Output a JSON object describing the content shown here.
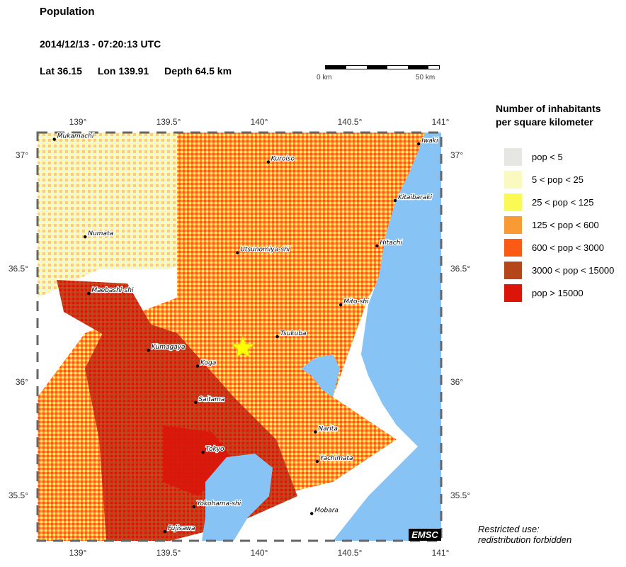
{
  "header": {
    "title": "Population",
    "datetime": "2014/12/13 - 07:20:13 UTC",
    "lat": "Lat 36.15",
    "lon": "Lon 139.91",
    "depth": "Depth  64.5 km"
  },
  "scale": {
    "left_label": "0 km",
    "right_label": "50 km"
  },
  "map": {
    "lon_ticks": [
      {
        "lon": 139,
        "label": "139°"
      },
      {
        "lon": 139.5,
        "label": "139.5°"
      },
      {
        "lon": 140,
        "label": "140°"
      },
      {
        "lon": 140.5,
        "label": "140.5°"
      },
      {
        "lon": 141,
        "label": "141°"
      }
    ],
    "lat_ticks": [
      {
        "lat": 37,
        "label": "37°"
      },
      {
        "lat": 36.5,
        "label": "36.5°"
      },
      {
        "lat": 36,
        "label": "36°"
      },
      {
        "lat": 35.5,
        "label": "35.5°"
      }
    ],
    "epicenter": {
      "lat": 36.15,
      "lon": 139.91
    },
    "cities": [
      {
        "name": "Mukamachi",
        "lat": 37.07,
        "lon": 138.87
      },
      {
        "name": "Kuroiso",
        "lat": 36.97,
        "lon": 140.05
      },
      {
        "name": "Iwaki",
        "lat": 37.05,
        "lon": 140.88
      },
      {
        "name": "Kitaibaraki",
        "lat": 36.8,
        "lon": 140.75
      },
      {
        "name": "Numata",
        "lat": 36.64,
        "lon": 139.04
      },
      {
        "name": "Utsunomiya-shi",
        "lat": 36.57,
        "lon": 139.88
      },
      {
        "name": "Hitachi",
        "lat": 36.6,
        "lon": 140.65
      },
      {
        "name": "Maebashi-shi",
        "lat": 36.39,
        "lon": 139.06
      },
      {
        "name": "Mito-shi",
        "lat": 36.34,
        "lon": 140.45
      },
      {
        "name": "Tsukuba",
        "lat": 36.2,
        "lon": 140.1
      },
      {
        "name": "Kumagaya",
        "lat": 36.14,
        "lon": 139.39
      },
      {
        "name": "Koga",
        "lat": 36.07,
        "lon": 139.66
      },
      {
        "name": "Saitama",
        "lat": 35.91,
        "lon": 139.65
      },
      {
        "name": "Narita",
        "lat": 35.78,
        "lon": 140.31
      },
      {
        "name": "Tokyo",
        "lat": 35.69,
        "lon": 139.69
      },
      {
        "name": "Yachimata",
        "lat": 35.65,
        "lon": 140.32
      },
      {
        "name": "Yokohama-shi",
        "lat": 35.45,
        "lon": 139.64
      },
      {
        "name": "Mobara",
        "lat": 35.42,
        "lon": 140.29
      },
      {
        "name": "Fujisawa",
        "lat": 35.34,
        "lon": 139.48
      }
    ]
  },
  "legend": {
    "title_line1": "Number of inhabitants",
    "title_line2": "per square kilometer",
    "items": [
      {
        "label": "pop < 5",
        "color": "#e6e6e3"
      },
      {
        "label": "5 < pop < 25",
        "color": "#fafac0"
      },
      {
        "label": "25 < pop < 125",
        "color": "#fafa55"
      },
      {
        "label": "125 < pop < 600",
        "color": "#fa9a35"
      },
      {
        "label": "600 < pop < 3000",
        "color": "#fa5a14"
      },
      {
        "label": "3000 < pop < 15000",
        "color": "#b4461a"
      },
      {
        "label": "pop > 15000",
        "color": "#dc140a"
      }
    ]
  },
  "colors": {
    "water": "#87c4f5",
    "epicenter": "#ffff00"
  },
  "footer": {
    "logo": "EMSC",
    "note_line1": "Restricted use:",
    "note_line2": "redistribution forbidden"
  }
}
